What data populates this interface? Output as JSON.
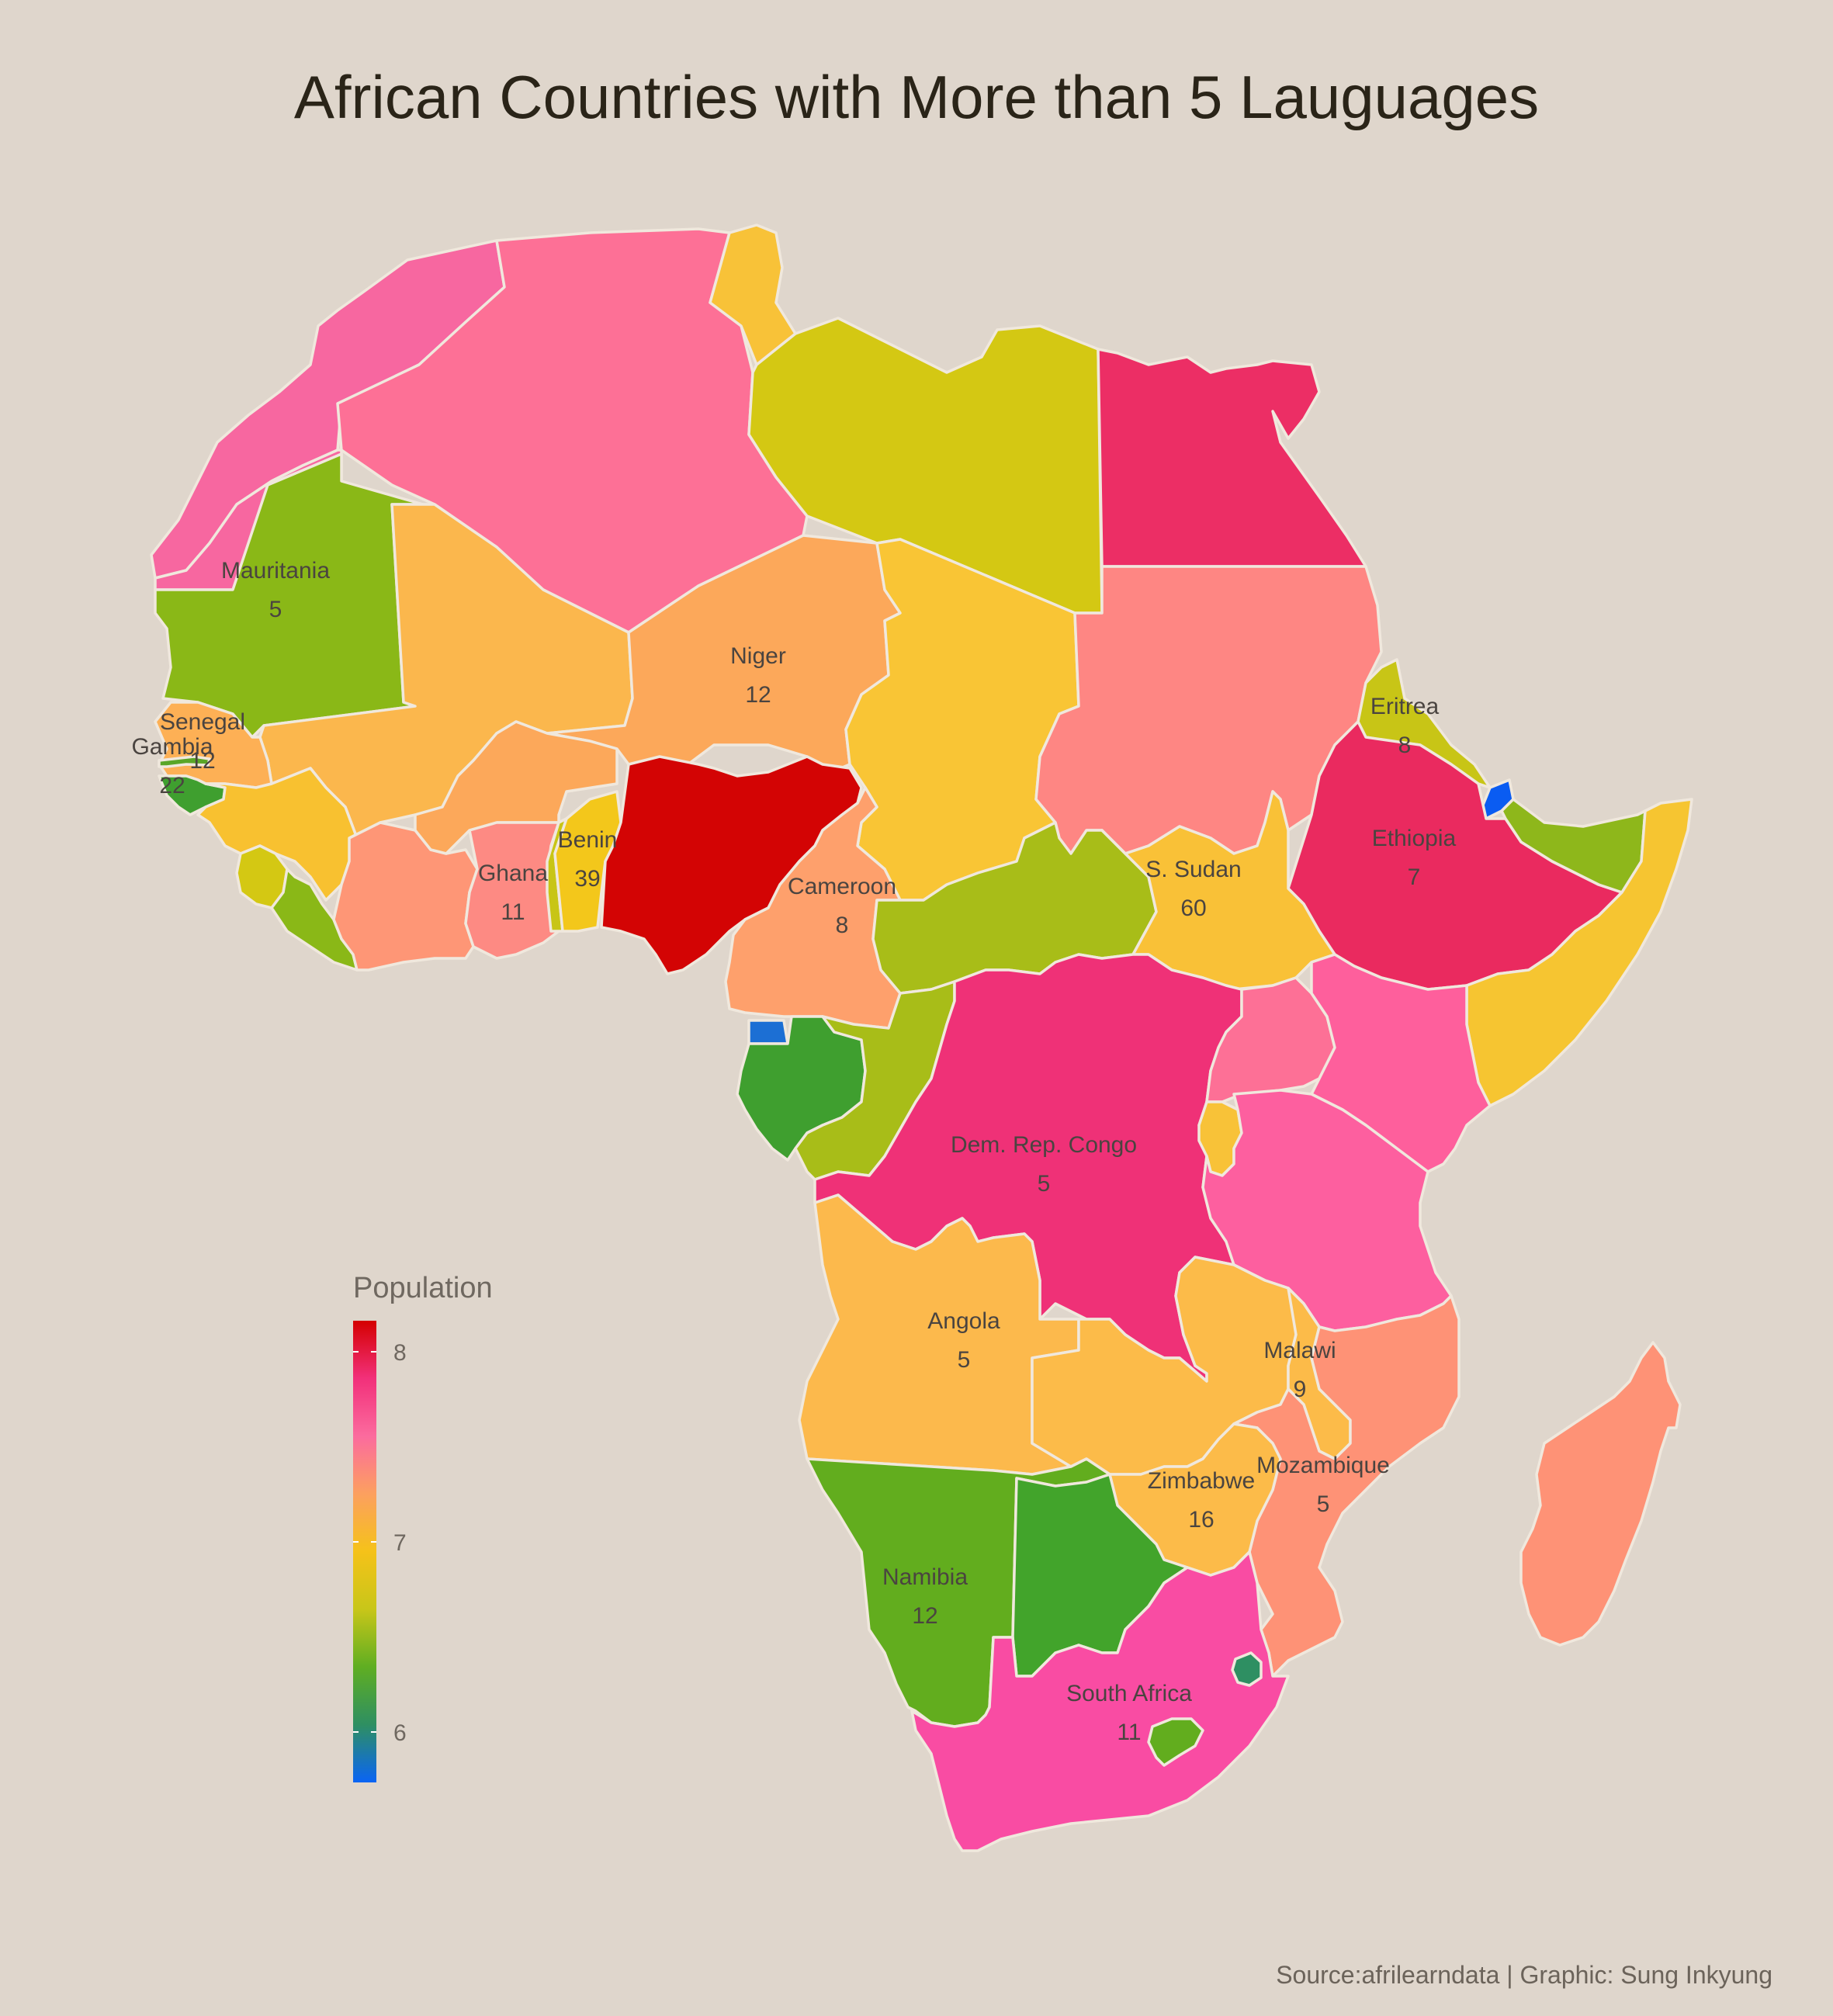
{
  "title": "African Countries with More than 5 Lauguages",
  "source": "Source:afrilearndata | Graphic: Sung Inkyung",
  "legend": {
    "title": "Population",
    "ticks": [
      "8",
      "7",
      "6"
    ],
    "gradient": [
      "#d40000",
      "#f2307a",
      "#fb6b9e",
      "#fca05f",
      "#f5c219",
      "#c8c619",
      "#5fae22",
      "#2e8f62",
      "#0a64f5"
    ]
  },
  "labels": [
    {
      "name": "Mauritania",
      "count": "5"
    },
    {
      "name": "Niger",
      "count": "12"
    },
    {
      "name": "Senegal",
      "count": "12"
    },
    {
      "name": "Gambia",
      "count": "22"
    },
    {
      "name": "Ghana",
      "count": "11"
    },
    {
      "name": "Benin",
      "count": "39"
    },
    {
      "name": "Cameroon",
      "count": "8"
    },
    {
      "name": "Eritrea",
      "count": "8"
    },
    {
      "name": "Ethiopia",
      "count": "7"
    },
    {
      "name": "S. Sudan",
      "count": "60"
    },
    {
      "name": "Dem. Rep. Congo",
      "count": "5"
    },
    {
      "name": "Angola",
      "count": "5"
    },
    {
      "name": "Malawi",
      "count": "9"
    },
    {
      "name": "Mozambique",
      "count": "5"
    },
    {
      "name": "Zimbabwe",
      "count": "16"
    },
    {
      "name": "Namibia",
      "count": "12"
    },
    {
      "name": "South Africa",
      "count": "11"
    }
  ],
  "colors": {
    "morocco": "#f767a0",
    "algeria": "#fd7096",
    "tunisia": "#f8c238",
    "libya": "#d4c813",
    "egypt": "#ec2e65",
    "mauritania": "#8ab817",
    "mali": "#fbb74d",
    "niger": "#fca85a",
    "chad": "#f9c535",
    "sudan": "#fe8683",
    "eritrea": "#c8c516",
    "djibouti": "#0a5cf2",
    "ethiopia": "#ea2a5f",
    "somalia": "#f6c531",
    "somaliland": "#8eb71b",
    "senegal": "#fdb055",
    "gambia": "#5aa627",
    "guinea_bissau": "#3f9f2f",
    "guinea": "#f8c130",
    "sierra_leone": "#d4c813",
    "liberia": "#8ab817",
    "ivory_coast": "#fe9676",
    "burkina_faso": "#fca85a",
    "ghana": "#fd8a83",
    "togo": "#c8c516",
    "benin": "#f3c71b",
    "nigeria": "#d30404",
    "cameroon": "#fea06c",
    "car": "#a8bd18",
    "s_sudan": "#f9c137",
    "eq_guinea": "#1c6fd4",
    "gabon": "#3f9f2f",
    "congo": "#a8bd18",
    "drc": "#ef3177",
    "uganda": "#fd7096",
    "kenya": "#fe5f9c",
    "rwanda": "#f8c238",
    "tanzania": "#fd5f9f",
    "angola": "#fcb94c",
    "zambia": "#fcbb49",
    "malawi": "#fcbb49",
    "mozambique": "#fe9276",
    "zimbabwe": "#fcbb49",
    "namibia": "#62ad1e",
    "botswana": "#42a42b",
    "south_africa": "#f94ca3",
    "lesotho": "#62ad1e",
    "eswatini": "#2e8f62",
    "madagascar": "#fe9276",
    "w_sahara": "#f767a0"
  }
}
